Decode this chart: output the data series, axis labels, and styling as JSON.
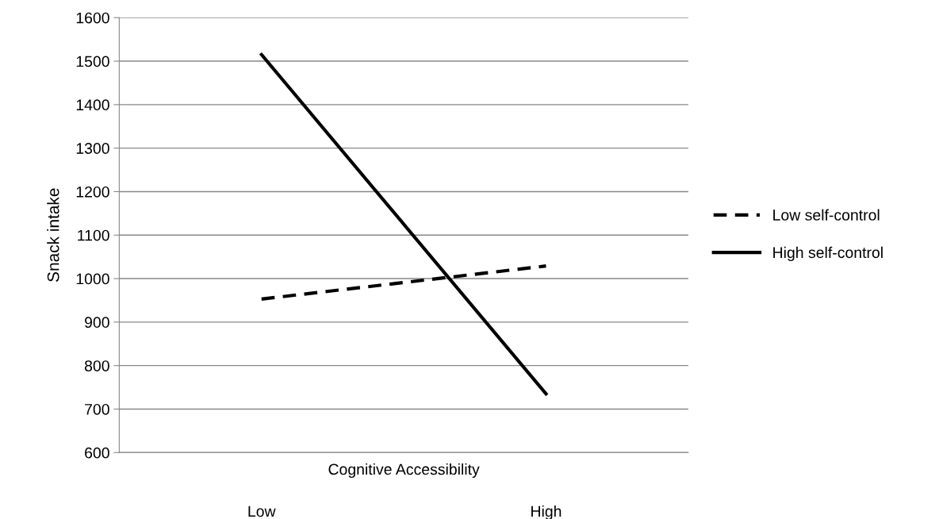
{
  "chart_data": {
    "type": "line",
    "xlabel": "Cognitive Accessibility",
    "ylabel": "Snack intake",
    "categories": [
      "Low",
      "High"
    ],
    "series": [
      {
        "name": "Low self-control",
        "color": "#000000",
        "line_style": "dashed",
        "values": [
          953,
          1029
        ]
      },
      {
        "name": "High self-control",
        "color": "#000000",
        "line_style": "solid",
        "values": [
          1515,
          735
        ]
      }
    ],
    "ylim": [
      600,
      1600
    ],
    "yticks": [
      600,
      700,
      800,
      900,
      1000,
      1100,
      1200,
      1300,
      1400,
      1500,
      1600
    ],
    "grid": "y",
    "legend": "right",
    "marker": "none"
  }
}
